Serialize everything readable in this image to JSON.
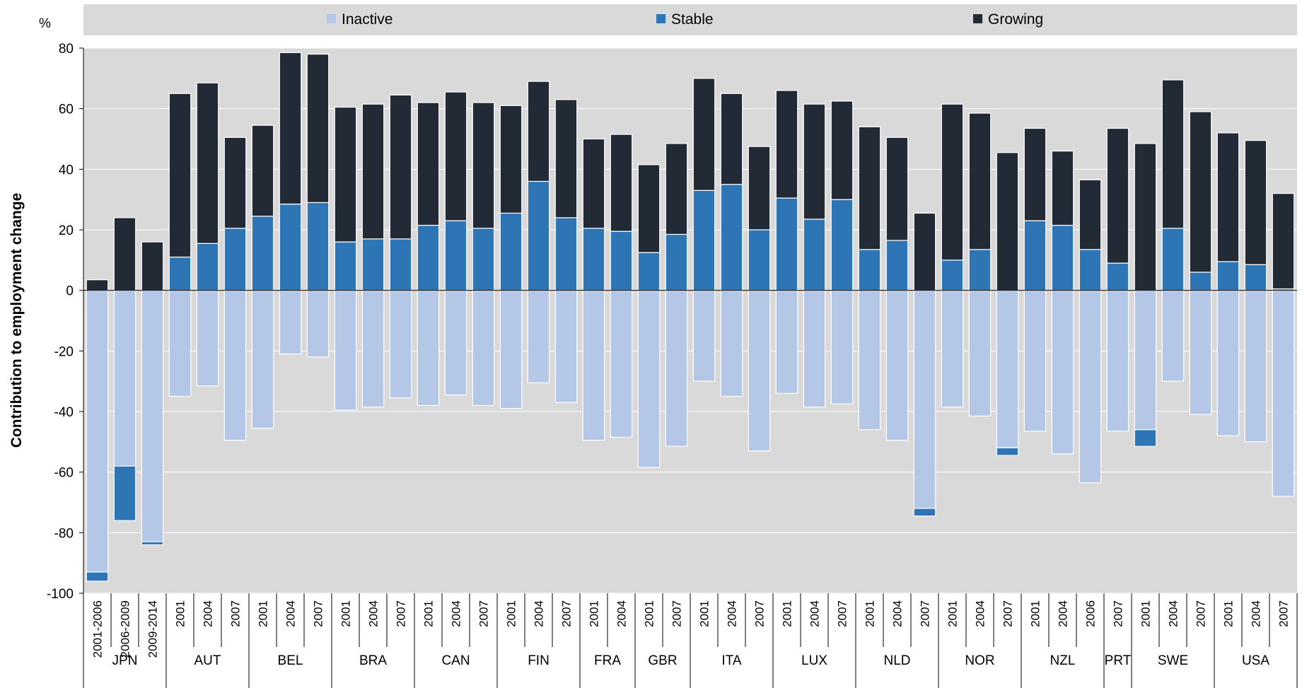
{
  "colors": {
    "inactive": "#b4c7e7",
    "stable": "#2e75b6",
    "growing": "#222a35",
    "plot_bg": "#d9d9d9",
    "legend_bg": "#d9d9d9",
    "gridline": "#ffffff"
  },
  "chart_data": {
    "type": "bar",
    "stacked": true,
    "unit_label": "%",
    "ylabel": "Contribution to employment change",
    "ylim": [
      -100,
      80
    ],
    "yticks": [
      80,
      60,
      40,
      20,
      0,
      -20,
      -40,
      -60,
      -80,
      -100
    ],
    "ytick_labels": [
      "80",
      "60",
      "40",
      "20",
      "0",
      "-20",
      "-40",
      "-60",
      "-80",
      "-100"
    ],
    "grid": true,
    "legend_position": "top",
    "legend": [
      "Inactive",
      "Stable",
      "Growing"
    ],
    "groups": [
      {
        "name": "JPN",
        "size": 3
      },
      {
        "name": "AUT",
        "size": 3
      },
      {
        "name": "BEL",
        "size": 3
      },
      {
        "name": "BRA",
        "size": 3
      },
      {
        "name": "CAN",
        "size": 3
      },
      {
        "name": "FIN",
        "size": 3
      },
      {
        "name": "FRA",
        "size": 2
      },
      {
        "name": "GBR",
        "size": 2
      },
      {
        "name": "ITA",
        "size": 3
      },
      {
        "name": "LUX",
        "size": 3
      },
      {
        "name": "NLD",
        "size": 3
      },
      {
        "name": "NOR",
        "size": 3
      },
      {
        "name": "NZL",
        "size": 3
      },
      {
        "name": "PRT",
        "size": 1
      },
      {
        "name": "SWE",
        "size": 3
      },
      {
        "name": "USA",
        "size": 3
      }
    ],
    "categories": [
      "2001-2006",
      "2006-2009",
      "2009-2014",
      "2001",
      "2004",
      "2007",
      "2001",
      "2004",
      "2007",
      "2001",
      "2004",
      "2007",
      "2001",
      "2004",
      "2007",
      "2001",
      "2004",
      "2007",
      "2001",
      "2004",
      "2001",
      "2007",
      "2001",
      "2004",
      "2007",
      "2001",
      "2004",
      "2007",
      "2001",
      "2004",
      "2007",
      "2001",
      "2004",
      "2007",
      "2001",
      "2004",
      "2006",
      "2007",
      "2001",
      "2004",
      "2007",
      "2001",
      "2004",
      "2007"
    ],
    "series": [
      {
        "name": "Inactive",
        "values": [
          -93,
          -58,
          -83,
          -35,
          -31.5,
          -49.5,
          -45.5,
          -21,
          -22,
          -39.5,
          -38.5,
          -35.5,
          -38,
          -34.5,
          -38,
          -39,
          -30.5,
          -37,
          -49.5,
          -48.5,
          -58.5,
          -51.5,
          -30,
          -35,
          -53,
          -34,
          -38.5,
          -37.5,
          -46,
          -49.5,
          -72,
          -38.5,
          -41.5,
          -52,
          -46.5,
          -54,
          -63.5,
          -46.5,
          -46,
          -30,
          -41,
          -48,
          -50,
          -68
        ]
      },
      {
        "name": "Stable",
        "values": [
          -3,
          -18,
          -1,
          11,
          15.5,
          20.5,
          24.5,
          28.5,
          29,
          16,
          17,
          17,
          21.5,
          23,
          20.5,
          25.5,
          36,
          24,
          20.5,
          19.5,
          12.5,
          18.5,
          33,
          35,
          20,
          30.5,
          23.5,
          30,
          13.5,
          16.5,
          -2.5,
          10,
          13.5,
          -2.5,
          23,
          21.5,
          13.5,
          9,
          -5.5,
          20.5,
          6,
          9.5,
          8.5,
          0.5
        ]
      },
      {
        "name": "Growing",
        "values": [
          3.5,
          24,
          16,
          54,
          53,
          30,
          30,
          50,
          49,
          44.5,
          44.5,
          47.5,
          40.5,
          42.5,
          41.5,
          35.5,
          33,
          39,
          29.5,
          32,
          29,
          30,
          37,
          30,
          27.5,
          35.5,
          38,
          32.5,
          40.5,
          34,
          25.5,
          51.5,
          45,
          45.5,
          30.5,
          24.5,
          23,
          44.5,
          48.5,
          49,
          53,
          42.5,
          41,
          31.5
        ]
      }
    ]
  }
}
